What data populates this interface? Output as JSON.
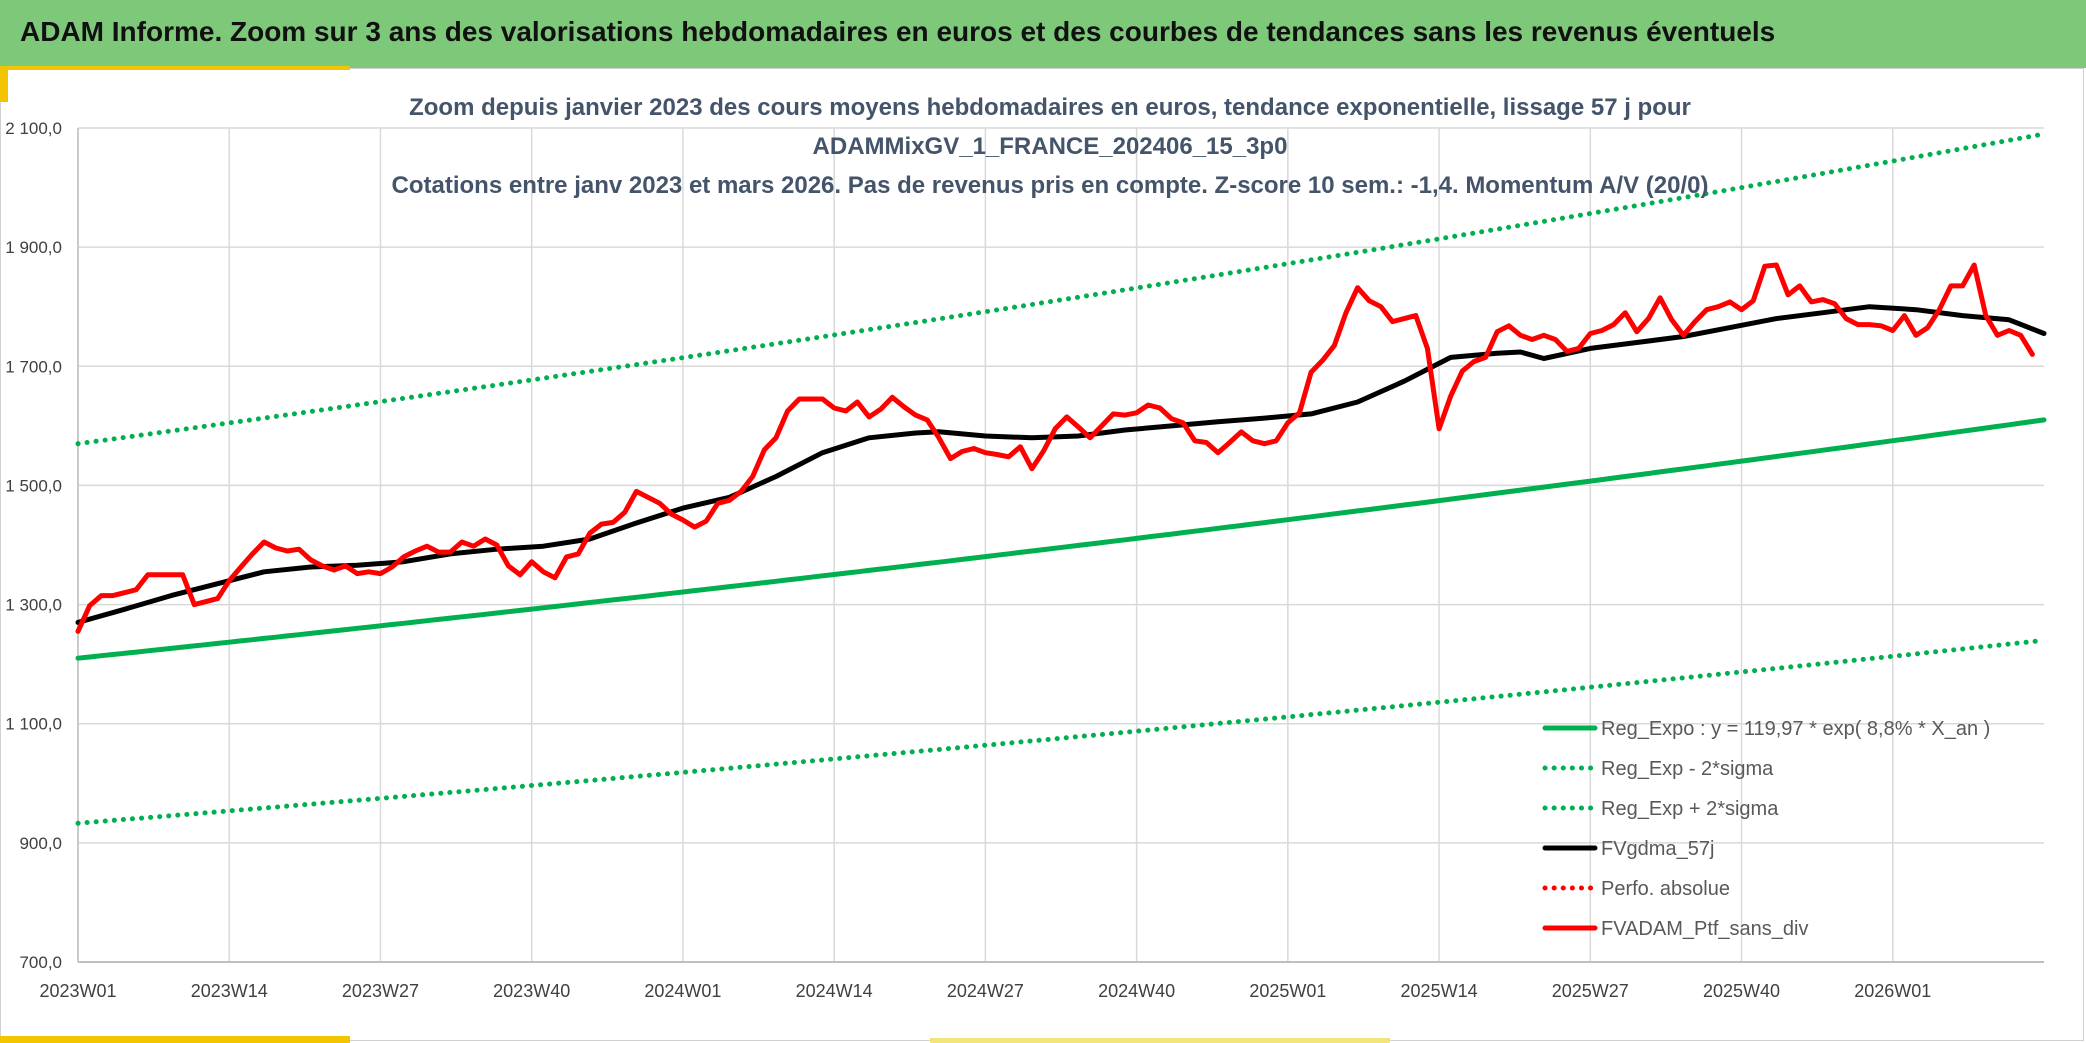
{
  "header": {
    "title": "ADAM Informe. Zoom sur 3 ans des valorisations hebdomadaires en euros et des courbes de tendances sans les revenus éventuels"
  },
  "chart_data": {
    "type": "line",
    "title_lines": [
      "Zoom depuis janvier 2023 des cours moyens hebdomadaires en euros, tendance exponentielle, lissage 57 j pour",
      "ADAMMixGV_1_FRANCE_202406_15_3p0",
      "Cotations entre janv 2023 et mars 2026. Pas de revenus pris en compte. Z-score 10 sem.: -1,4. Momentum A/V (20/0)"
    ],
    "ylim": [
      700,
      2100
    ],
    "y_ticks": [
      700,
      900,
      1100,
      1300,
      1500,
      1700,
      1900,
      2100
    ],
    "y_tick_labels": [
      "700,0",
      "900,0",
      "1 100,0",
      "1 300,0",
      "1 500,0",
      "1 700,0",
      "1 900,0",
      "2 100,0"
    ],
    "x_range": [
      0,
      169
    ],
    "x_ticks": [
      0,
      13,
      26,
      39,
      52,
      65,
      78,
      91,
      104,
      117,
      130,
      143,
      156
    ],
    "x_tick_labels": [
      "2023W01",
      "2023W14",
      "2023W27",
      "2023W40",
      "2024W01",
      "2024W14",
      "2024W27",
      "2024W40",
      "2025W01",
      "2025W14",
      "2025W27",
      "2025W40",
      "2026W01"
    ],
    "series": [
      {
        "name": "Reg_Expo : y = 119,97 * exp( 8,8% *  X_an )",
        "color": "#00b050",
        "style": "solid",
        "kind": "trend",
        "start": 1210,
        "end": 1610
      },
      {
        "name": "Reg_Exp - 2*sigma",
        "color": "#00b050",
        "style": "dotted",
        "kind": "trend",
        "start": 933,
        "end": 1240
      },
      {
        "name": "Reg_Exp + 2*sigma",
        "color": "#00b050",
        "style": "dotted",
        "kind": "trend",
        "start": 1570,
        "end": 2090
      },
      {
        "name": "FVgdma_57j",
        "color": "#000000",
        "style": "solid",
        "kind": "points",
        "points": [
          [
            0,
            1270
          ],
          [
            4,
            1292
          ],
          [
            8,
            1315
          ],
          [
            12,
            1335
          ],
          [
            16,
            1355
          ],
          [
            20,
            1363
          ],
          [
            24,
            1366
          ],
          [
            28,
            1372
          ],
          [
            32,
            1385
          ],
          [
            36,
            1393
          ],
          [
            40,
            1398
          ],
          [
            44,
            1410
          ],
          [
            48,
            1437
          ],
          [
            52,
            1462
          ],
          [
            56,
            1480
          ],
          [
            60,
            1515
          ],
          [
            64,
            1555
          ],
          [
            68,
            1580
          ],
          [
            72,
            1588
          ],
          [
            74,
            1590
          ],
          [
            78,
            1583
          ],
          [
            82,
            1580
          ],
          [
            86,
            1583
          ],
          [
            90,
            1593
          ],
          [
            94,
            1600
          ],
          [
            98,
            1607
          ],
          [
            102,
            1613
          ],
          [
            106,
            1620
          ],
          [
            110,
            1640
          ],
          [
            114,
            1675
          ],
          [
            118,
            1715
          ],
          [
            122,
            1722
          ],
          [
            124,
            1724
          ],
          [
            126,
            1713
          ],
          [
            130,
            1730
          ],
          [
            134,
            1740
          ],
          [
            138,
            1750
          ],
          [
            142,
            1765
          ],
          [
            146,
            1780
          ],
          [
            150,
            1790
          ],
          [
            154,
            1800
          ],
          [
            158,
            1795
          ],
          [
            162,
            1785
          ],
          [
            166,
            1778
          ],
          [
            169,
            1755
          ]
        ]
      },
      {
        "name": "Perfo. absolue",
        "color": "#ff0000",
        "style": "dotted",
        "kind": "none"
      },
      {
        "name": "FVADAM_Ptf_sans_div",
        "color": "#ff0000",
        "style": "solid",
        "kind": "points",
        "points": [
          [
            0,
            1255
          ],
          [
            1,
            1298
          ],
          [
            2,
            1315
          ],
          [
            3,
            1315
          ],
          [
            4,
            1320
          ],
          [
            5,
            1325
          ],
          [
            6,
            1350
          ],
          [
            7,
            1350
          ],
          [
            8,
            1350
          ],
          [
            9,
            1350
          ],
          [
            10,
            1300
          ],
          [
            11,
            1305
          ],
          [
            12,
            1310
          ],
          [
            13,
            1340
          ],
          [
            14,
            1363
          ],
          [
            15,
            1385
          ],
          [
            16,
            1405
          ],
          [
            17,
            1395
          ],
          [
            18,
            1390
          ],
          [
            19,
            1393
          ],
          [
            20,
            1375
          ],
          [
            21,
            1365
          ],
          [
            22,
            1358
          ],
          [
            23,
            1365
          ],
          [
            24,
            1352
          ],
          [
            25,
            1355
          ],
          [
            26,
            1352
          ],
          [
            27,
            1363
          ],
          [
            28,
            1380
          ],
          [
            29,
            1390
          ],
          [
            30,
            1398
          ],
          [
            31,
            1388
          ],
          [
            32,
            1388
          ],
          [
            33,
            1405
          ],
          [
            34,
            1398
          ],
          [
            35,
            1410
          ],
          [
            36,
            1400
          ],
          [
            37,
            1365
          ],
          [
            38,
            1350
          ],
          [
            39,
            1372
          ],
          [
            40,
            1355
          ],
          [
            41,
            1345
          ],
          [
            42,
            1380
          ],
          [
            43,
            1385
          ],
          [
            44,
            1420
          ],
          [
            45,
            1435
          ],
          [
            46,
            1438
          ],
          [
            47,
            1455
          ],
          [
            48,
            1490
          ],
          [
            49,
            1480
          ],
          [
            50,
            1470
          ],
          [
            51,
            1452
          ],
          [
            52,
            1442
          ],
          [
            53,
            1430
          ],
          [
            54,
            1440
          ],
          [
            55,
            1470
          ],
          [
            56,
            1475
          ],
          [
            57,
            1490
          ],
          [
            58,
            1515
          ],
          [
            59,
            1560
          ],
          [
            60,
            1580
          ],
          [
            61,
            1625
          ],
          [
            62,
            1645
          ],
          [
            63,
            1645
          ],
          [
            64,
            1645
          ],
          [
            65,
            1630
          ],
          [
            66,
            1625
          ],
          [
            67,
            1640
          ],
          [
            68,
            1615
          ],
          [
            69,
            1628
          ],
          [
            70,
            1648
          ],
          [
            71,
            1632
          ],
          [
            72,
            1618
          ],
          [
            73,
            1610
          ],
          [
            74,
            1580
          ],
          [
            75,
            1545
          ],
          [
            76,
            1557
          ],
          [
            77,
            1562
          ],
          [
            78,
            1555
          ],
          [
            79,
            1552
          ],
          [
            80,
            1548
          ],
          [
            81,
            1565
          ],
          [
            82,
            1528
          ],
          [
            83,
            1558
          ],
          [
            84,
            1595
          ],
          [
            85,
            1615
          ],
          [
            86,
            1598
          ],
          [
            87,
            1580
          ],
          [
            88,
            1600
          ],
          [
            89,
            1620
          ],
          [
            90,
            1618
          ],
          [
            91,
            1622
          ],
          [
            92,
            1635
          ],
          [
            93,
            1630
          ],
          [
            94,
            1612
          ],
          [
            95,
            1605
          ],
          [
            96,
            1575
          ],
          [
            97,
            1572
          ],
          [
            98,
            1555
          ],
          [
            99,
            1572
          ],
          [
            100,
            1590
          ],
          [
            101,
            1575
          ],
          [
            102,
            1570
          ],
          [
            103,
            1575
          ],
          [
            104,
            1605
          ],
          [
            105,
            1622
          ],
          [
            106,
            1690
          ],
          [
            107,
            1710
          ],
          [
            108,
            1735
          ],
          [
            109,
            1790
          ],
          [
            110,
            1832
          ],
          [
            111,
            1810
          ],
          [
            112,
            1800
          ],
          [
            113,
            1775
          ],
          [
            114,
            1780
          ],
          [
            115,
            1785
          ],
          [
            116,
            1730
          ],
          [
            117,
            1595
          ],
          [
            118,
            1650
          ],
          [
            119,
            1692
          ],
          [
            120,
            1708
          ],
          [
            121,
            1715
          ],
          [
            122,
            1758
          ],
          [
            123,
            1768
          ],
          [
            124,
            1752
          ],
          [
            125,
            1745
          ],
          [
            126,
            1752
          ],
          [
            127,
            1745
          ],
          [
            128,
            1725
          ],
          [
            129,
            1730
          ],
          [
            130,
            1755
          ],
          [
            131,
            1760
          ],
          [
            132,
            1770
          ],
          [
            133,
            1790
          ],
          [
            134,
            1758
          ],
          [
            135,
            1780
          ],
          [
            136,
            1815
          ],
          [
            137,
            1778
          ],
          [
            138,
            1752
          ],
          [
            139,
            1775
          ],
          [
            140,
            1795
          ],
          [
            141,
            1800
          ],
          [
            142,
            1808
          ],
          [
            143,
            1795
          ],
          [
            144,
            1810
          ],
          [
            145,
            1868
          ],
          [
            146,
            1870
          ],
          [
            147,
            1820
          ],
          [
            148,
            1835
          ],
          [
            149,
            1808
          ],
          [
            150,
            1812
          ],
          [
            151,
            1805
          ],
          [
            152,
            1780
          ],
          [
            153,
            1770
          ],
          [
            154,
            1770
          ],
          [
            155,
            1768
          ],
          [
            156,
            1760
          ],
          [
            157,
            1785
          ],
          [
            158,
            1752
          ],
          [
            159,
            1765
          ],
          [
            160,
            1795
          ],
          [
            161,
            1835
          ],
          [
            162,
            1835
          ],
          [
            163,
            1870
          ],
          [
            164,
            1785
          ],
          [
            165,
            1752
          ],
          [
            166,
            1760
          ],
          [
            167,
            1752
          ],
          [
            168,
            1720
          ]
        ]
      }
    ],
    "legend_position": "bottom-right",
    "grid": true
  }
}
